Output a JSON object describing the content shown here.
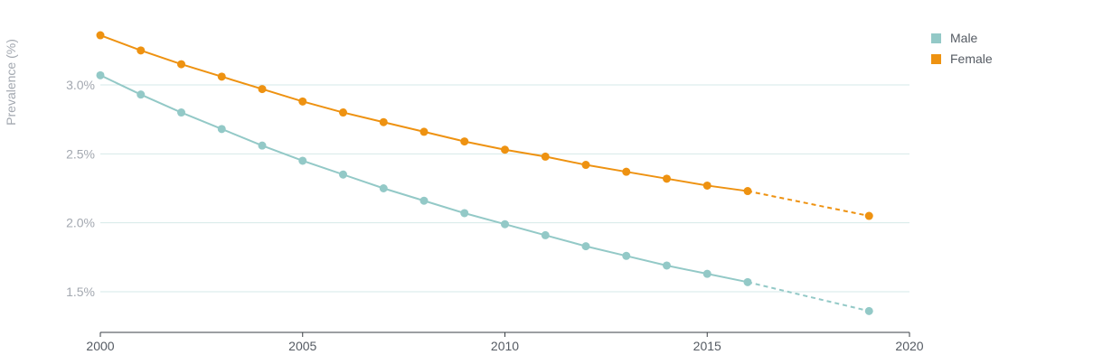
{
  "chart_data": {
    "type": "line",
    "title": "",
    "xlabel": "",
    "ylabel": "Prevalence (%)",
    "xlim": [
      2000,
      2020
    ],
    "ylim": [
      1.2,
      3.4
    ],
    "x_ticks": [
      2000,
      2005,
      2010,
      2015,
      2020
    ],
    "x_tick_labels": [
      "2000",
      "2005",
      "2010",
      "2015",
      "2020"
    ],
    "y_ticks": [
      1.5,
      2.0,
      2.5,
      3.0
    ],
    "y_tick_labels": [
      "1.5%",
      "2.0%",
      "2.5%",
      "3.0%"
    ],
    "grid": "horizontal",
    "legend_position": "top-right",
    "series": [
      {
        "name": "Male",
        "color": "#93c9c7",
        "x": [
          2000,
          2001,
          2002,
          2003,
          2004,
          2005,
          2006,
          2007,
          2008,
          2009,
          2010,
          2011,
          2012,
          2013,
          2014,
          2015,
          2016,
          2019
        ],
        "y": [
          3.07,
          2.93,
          2.8,
          2.68,
          2.56,
          2.45,
          2.35,
          2.25,
          2.16,
          2.07,
          1.99,
          1.91,
          1.83,
          1.76,
          1.69,
          1.63,
          1.57,
          1.36
        ],
        "projected_from": 2016
      },
      {
        "name": "Female",
        "color": "#ee9211",
        "x": [
          2000,
          2001,
          2002,
          2003,
          2004,
          2005,
          2006,
          2007,
          2008,
          2009,
          2010,
          2011,
          2012,
          2013,
          2014,
          2015,
          2016,
          2019
        ],
        "y": [
          3.36,
          3.25,
          3.15,
          3.06,
          2.97,
          2.88,
          2.8,
          2.73,
          2.66,
          2.59,
          2.53,
          2.48,
          2.42,
          2.37,
          2.32,
          2.27,
          2.23,
          2.05
        ],
        "projected_from": 2016
      }
    ]
  }
}
